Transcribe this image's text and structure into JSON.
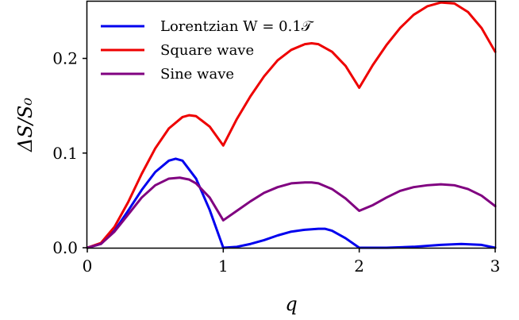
{
  "chart_data": {
    "type": "line",
    "xlabel": "q",
    "ylabel": "ΔS/S₀",
    "xlim": [
      0,
      3
    ],
    "ylim": [
      0,
      0.26
    ],
    "x_ticks": [
      0,
      1,
      2,
      3
    ],
    "x_tick_labels": [
      "0",
      "1",
      "2",
      "3"
    ],
    "y_ticks": [
      0.0,
      0.1,
      0.2
    ],
    "y_tick_labels": [
      "0.0",
      "0.1",
      "0.2"
    ],
    "grid": false,
    "legend_position": "top-left",
    "series": [
      {
        "name": "Lorentzian W = 0.1𝒯",
        "color": "#0000ee",
        "x": [
          0,
          0.1,
          0.2,
          0.3,
          0.4,
          0.5,
          0.6,
          0.65,
          0.7,
          0.8,
          0.9,
          1.0,
          1.1,
          1.2,
          1.3,
          1.4,
          1.5,
          1.6,
          1.7,
          1.75,
          1.8,
          1.9,
          2.0,
          2.2,
          2.4,
          2.6,
          2.75,
          2.9,
          3.0
        ],
        "y": [
          0,
          0.004,
          0.018,
          0.039,
          0.061,
          0.08,
          0.092,
          0.094,
          0.092,
          0.073,
          0.04,
          0.0,
          0.001,
          0.004,
          0.008,
          0.013,
          0.017,
          0.019,
          0.02,
          0.02,
          0.018,
          0.01,
          0.0,
          0.0,
          0.001,
          0.003,
          0.004,
          0.003,
          0.0
        ]
      },
      {
        "name": "Square wave",
        "color": "#ee0000",
        "x": [
          0,
          0.1,
          0.2,
          0.3,
          0.4,
          0.5,
          0.6,
          0.7,
          0.75,
          0.8,
          0.9,
          1.0,
          1.1,
          1.2,
          1.3,
          1.4,
          1.5,
          1.6,
          1.65,
          1.7,
          1.8,
          1.9,
          2.0,
          2.1,
          2.2,
          2.3,
          2.4,
          2.5,
          2.6,
          2.7,
          2.8,
          2.9,
          3.0
        ],
        "y": [
          0,
          0.005,
          0.022,
          0.048,
          0.078,
          0.105,
          0.126,
          0.138,
          0.14,
          0.139,
          0.128,
          0.108,
          0.136,
          0.16,
          0.181,
          0.198,
          0.209,
          0.215,
          0.216,
          0.215,
          0.207,
          0.192,
          0.169,
          0.193,
          0.214,
          0.232,
          0.246,
          0.255,
          0.259,
          0.258,
          0.249,
          0.232,
          0.207
        ]
      },
      {
        "name": "Sine wave",
        "color": "#800080",
        "x": [
          0,
          0.1,
          0.2,
          0.3,
          0.4,
          0.5,
          0.6,
          0.68,
          0.75,
          0.8,
          0.9,
          1.0,
          1.1,
          1.2,
          1.3,
          1.4,
          1.5,
          1.6,
          1.65,
          1.7,
          1.8,
          1.9,
          2.0,
          2.1,
          2.2,
          2.3,
          2.4,
          2.5,
          2.6,
          2.7,
          2.8,
          2.9,
          3.0
        ],
        "y": [
          0,
          0.004,
          0.017,
          0.035,
          0.053,
          0.066,
          0.073,
          0.074,
          0.072,
          0.068,
          0.053,
          0.029,
          0.039,
          0.049,
          0.058,
          0.064,
          0.068,
          0.069,
          0.069,
          0.068,
          0.062,
          0.052,
          0.039,
          0.045,
          0.053,
          0.06,
          0.064,
          0.066,
          0.067,
          0.066,
          0.062,
          0.055,
          0.044
        ]
      }
    ]
  }
}
